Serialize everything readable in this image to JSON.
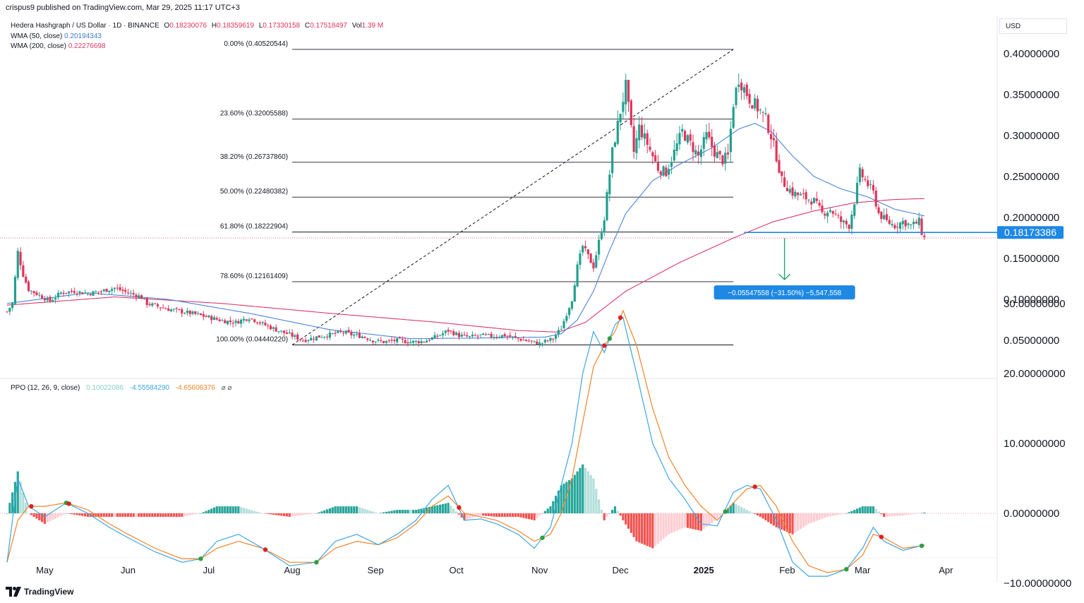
{
  "header": {
    "publisher": "crispus9 published on TradingView.com, Mar 29, 2025 11:17 UTC+3"
  },
  "legend": {
    "symbol": "Hedera Hashgraph / US Dollar · 1D · BINANCE",
    "o_label": "O",
    "o": "0.18230076",
    "h_label": "H",
    "h": "0.18359619",
    "l_label": "L",
    "l": "0.17330158",
    "c_label": "C",
    "c": "0.17518497",
    "vol_label": "Vol",
    "vol": "1.39 M",
    "wma50_label": "WMA (50, close)",
    "wma50": "0.20194343",
    "wma200_label": "WMA (200, close)",
    "wma200": "0.22276698",
    "ppo_label": "PPO (12, 26, 9, close)",
    "ppo_hist": "0.10022086",
    "ppo_line": "-4.55584290",
    "ppo_signal": "-4.65606376",
    "ppo_icons": "⌀ ⌀"
  },
  "currency": "USD",
  "footer": {
    "brand": "TradingView"
  },
  "colors": {
    "up": "#22a08f",
    "down": "#e0345c",
    "wma50": "#4a86d6",
    "wma200": "#d9396a",
    "ppo_line": "#3ea6e0",
    "ppo_signal": "#f0842a",
    "tag": "#1e88e5",
    "measure": "#26a17a"
  },
  "chart_data": {
    "type": "candlestick",
    "price_axis": {
      "ticks": [
        "0.40000000",
        "0.35000000",
        "0.30000000",
        "0.25000000",
        "0.20000000",
        "0.15000000",
        "0.10000000",
        "0.05000000"
      ],
      "tick_values": [
        0.4,
        0.35,
        0.3,
        0.25,
        0.2,
        0.15,
        0.1,
        0.05
      ]
    },
    "ppo_axis": {
      "ticks": [
        "30.00000000",
        "20.00000000",
        "10.00000000",
        "0.00000000",
        "−10.00000000"
      ],
      "tick_values": [
        30,
        20,
        10,
        0,
        -10
      ]
    },
    "x_labels": [
      "May",
      "Jun",
      "Jul",
      "Aug",
      "Sep",
      "Oct",
      "Nov",
      "Dec",
      "2025",
      "Feb",
      "Mar",
      "Apr"
    ],
    "x_label_days": [
      14,
      45,
      75,
      106,
      137,
      167,
      198,
      228,
      259,
      290,
      318,
      349
    ],
    "current_price": "0.18173386",
    "current_price_value": 0.18173386,
    "fib_levels": [
      {
        "label": "0.00% (0.40520544)",
        "value": 0.40520544
      },
      {
        "label": "23.60% (0.32005588)",
        "value": 0.32005588
      },
      {
        "label": "38.20% (0.26737860)",
        "value": 0.2673786
      },
      {
        "label": "50.00% (0.22480382)",
        "value": 0.22480382
      },
      {
        "label": "61.80% (0.18222904)",
        "value": 0.18222904
      },
      {
        "label": "78.60% (0.12161409)",
        "value": 0.12161409
      },
      {
        "label": "100.00% (0.04440220)",
        "value": 0.0444022
      }
    ],
    "measure_label": "−0.05547558 (−31.50%) −5,547,558",
    "price_anchors": [
      [
        0,
        0.085
      ],
      [
        2,
        0.095
      ],
      [
        4,
        0.158
      ],
      [
        6,
        0.13
      ],
      [
        8,
        0.112
      ],
      [
        12,
        0.105
      ],
      [
        16,
        0.098
      ],
      [
        20,
        0.108
      ],
      [
        25,
        0.11
      ],
      [
        30,
        0.107
      ],
      [
        35,
        0.11
      ],
      [
        40,
        0.114
      ],
      [
        45,
        0.108
      ],
      [
        50,
        0.103
      ],
      [
        52,
        0.095
      ],
      [
        60,
        0.088
      ],
      [
        65,
        0.085
      ],
      [
        70,
        0.082
      ],
      [
        75,
        0.078
      ],
      [
        80,
        0.074
      ],
      [
        85,
        0.072
      ],
      [
        90,
        0.078
      ],
      [
        95,
        0.07
      ],
      [
        100,
        0.063
      ],
      [
        105,
        0.057
      ],
      [
        110,
        0.05
      ],
      [
        115,
        0.054
      ],
      [
        120,
        0.057
      ],
      [
        125,
        0.06
      ],
      [
        128,
        0.057
      ],
      [
        132,
        0.055
      ],
      [
        136,
        0.05
      ],
      [
        140,
        0.048
      ],
      [
        145,
        0.05
      ],
      [
        150,
        0.048
      ],
      [
        155,
        0.049
      ],
      [
        160,
        0.055
      ],
      [
        164,
        0.062
      ],
      [
        168,
        0.056
      ],
      [
        172,
        0.054
      ],
      [
        176,
        0.056
      ],
      [
        180,
        0.055
      ],
      [
        185,
        0.056
      ],
      [
        190,
        0.052
      ],
      [
        195,
        0.048
      ],
      [
        198,
        0.046
      ],
      [
        203,
        0.052
      ],
      [
        206,
        0.065
      ],
      [
        210,
        0.1
      ],
      [
        212,
        0.14
      ],
      [
        214,
        0.165
      ],
      [
        218,
        0.14
      ],
      [
        220,
        0.17
      ],
      [
        222,
        0.2
      ],
      [
        225,
        0.28
      ],
      [
        228,
        0.33
      ],
      [
        230,
        0.36
      ],
      [
        233,
        0.28
      ],
      [
        235,
        0.31
      ],
      [
        238,
        0.29
      ],
      [
        242,
        0.26
      ],
      [
        245,
        0.255
      ],
      [
        248,
        0.28
      ],
      [
        251,
        0.305
      ],
      [
        254,
        0.29
      ],
      [
        257,
        0.275
      ],
      [
        260,
        0.3
      ],
      [
        263,
        0.28
      ],
      [
        266,
        0.27
      ],
      [
        268,
        0.275
      ],
      [
        270,
        0.34
      ],
      [
        272,
        0.37
      ],
      [
        276,
        0.345
      ],
      [
        280,
        0.33
      ],
      [
        282,
        0.32
      ],
      [
        284,
        0.3
      ],
      [
        286,
        0.275
      ],
      [
        288,
        0.245
      ],
      [
        292,
        0.23
      ],
      [
        296,
        0.225
      ],
      [
        300,
        0.22
      ],
      [
        303,
        0.205
      ],
      [
        306,
        0.21
      ],
      [
        310,
        0.195
      ],
      [
        313,
        0.19
      ],
      [
        315,
        0.22
      ],
      [
        317,
        0.255
      ],
      [
        320,
        0.24
      ],
      [
        322,
        0.23
      ],
      [
        324,
        0.205
      ],
      [
        327,
        0.195
      ],
      [
        330,
        0.19
      ],
      [
        333,
        0.195
      ],
      [
        336,
        0.19
      ],
      [
        339,
        0.195
      ],
      [
        340,
        0.182
      ],
      [
        341,
        0.175
      ]
    ],
    "wma50_anchors": [
      [
        0,
        0.095
      ],
      [
        30,
        0.108
      ],
      [
        60,
        0.1
      ],
      [
        90,
        0.083
      ],
      [
        120,
        0.063
      ],
      [
        150,
        0.052
      ],
      [
        180,
        0.053
      ],
      [
        200,
        0.054
      ],
      [
        206,
        0.058
      ],
      [
        212,
        0.075
      ],
      [
        218,
        0.11
      ],
      [
        224,
        0.16
      ],
      [
        230,
        0.205
      ],
      [
        240,
        0.245
      ],
      [
        250,
        0.265
      ],
      [
        262,
        0.285
      ],
      [
        272,
        0.308
      ],
      [
        278,
        0.315
      ],
      [
        284,
        0.305
      ],
      [
        292,
        0.275
      ],
      [
        300,
        0.25
      ],
      [
        310,
        0.235
      ],
      [
        320,
        0.225
      ],
      [
        330,
        0.21
      ],
      [
        341,
        0.202
      ]
    ],
    "wma200_anchors": [
      [
        0,
        0.093
      ],
      [
        40,
        0.103
      ],
      [
        80,
        0.095
      ],
      [
        120,
        0.083
      ],
      [
        160,
        0.072
      ],
      [
        190,
        0.062
      ],
      [
        205,
        0.06
      ],
      [
        215,
        0.072
      ],
      [
        230,
        0.11
      ],
      [
        250,
        0.145
      ],
      [
        270,
        0.175
      ],
      [
        285,
        0.195
      ],
      [
        300,
        0.208
      ],
      [
        315,
        0.218
      ],
      [
        330,
        0.222
      ],
      [
        341,
        0.223
      ]
    ],
    "ppo_line_anchors": [
      [
        0,
        -7
      ],
      [
        4,
        5
      ],
      [
        8,
        1
      ],
      [
        14,
        -0.5
      ],
      [
        22,
        1.5
      ],
      [
        30,
        0
      ],
      [
        38,
        -2
      ],
      [
        45,
        -3.5
      ],
      [
        55,
        -5.5
      ],
      [
        65,
        -7
      ],
      [
        72,
        -6.5
      ],
      [
        78,
        -4
      ],
      [
        86,
        -3
      ],
      [
        95,
        -5
      ],
      [
        105,
        -7.5
      ],
      [
        115,
        -7
      ],
      [
        122,
        -4
      ],
      [
        130,
        -3
      ],
      [
        138,
        -4.5
      ],
      [
        145,
        -3
      ],
      [
        152,
        -1
      ],
      [
        158,
        2
      ],
      [
        164,
        4
      ],
      [
        170,
        -1
      ],
      [
        176,
        -0.8
      ],
      [
        182,
        -1.5
      ],
      [
        190,
        -3
      ],
      [
        196,
        -5
      ],
      [
        202,
        -2
      ],
      [
        206,
        4
      ],
      [
        210,
        10
      ],
      [
        214,
        20
      ],
      [
        218,
        26
      ],
      [
        222,
        23
      ],
      [
        226,
        27
      ],
      [
        229,
        28
      ],
      [
        234,
        20
      ],
      [
        240,
        10
      ],
      [
        246,
        5
      ],
      [
        252,
        2
      ],
      [
        258,
        -1.5
      ],
      [
        264,
        -1.8
      ],
      [
        270,
        3
      ],
      [
        275,
        4
      ],
      [
        280,
        3.5
      ],
      [
        286,
        -1
      ],
      [
        292,
        -7
      ],
      [
        298,
        -9
      ],
      [
        305,
        -9
      ],
      [
        312,
        -8
      ],
      [
        318,
        -5
      ],
      [
        322,
        -2
      ],
      [
        326,
        -4
      ],
      [
        333,
        -5.3
      ],
      [
        341,
        -4.5
      ]
    ],
    "ppo_signal_anchors": [
      [
        0,
        -7
      ],
      [
        4,
        -1
      ],
      [
        8,
        1
      ],
      [
        14,
        1
      ],
      [
        22,
        1.5
      ],
      [
        30,
        0.5
      ],
      [
        38,
        -1.5
      ],
      [
        45,
        -3
      ],
      [
        55,
        -5
      ],
      [
        65,
        -6.5
      ],
      [
        72,
        -6.5
      ],
      [
        78,
        -5
      ],
      [
        86,
        -4
      ],
      [
        95,
        -5
      ],
      [
        105,
        -7
      ],
      [
        115,
        -7
      ],
      [
        122,
        -5
      ],
      [
        130,
        -4
      ],
      [
        138,
        -4.5
      ],
      [
        145,
        -3.5
      ],
      [
        152,
        -1.5
      ],
      [
        158,
        1
      ],
      [
        164,
        2.5
      ],
      [
        170,
        0
      ],
      [
        176,
        -0.5
      ],
      [
        182,
        -1
      ],
      [
        190,
        -2.5
      ],
      [
        196,
        -4
      ],
      [
        202,
        -3
      ],
      [
        206,
        0
      ],
      [
        210,
        5
      ],
      [
        214,
        13
      ],
      [
        218,
        21
      ],
      [
        222,
        24
      ],
      [
        226,
        26
      ],
      [
        229,
        29
      ],
      [
        234,
        24
      ],
      [
        240,
        15
      ],
      [
        246,
        8
      ],
      [
        252,
        4
      ],
      [
        258,
        1
      ],
      [
        264,
        -1
      ],
      [
        270,
        1.5
      ],
      [
        275,
        3.5
      ],
      [
        280,
        4
      ],
      [
        286,
        1
      ],
      [
        292,
        -4
      ],
      [
        298,
        -7.5
      ],
      [
        305,
        -8.5
      ],
      [
        312,
        -8
      ],
      [
        318,
        -6
      ],
      [
        322,
        -3
      ],
      [
        326,
        -3.5
      ],
      [
        333,
        -5
      ],
      [
        341,
        -4.6
      ]
    ]
  }
}
